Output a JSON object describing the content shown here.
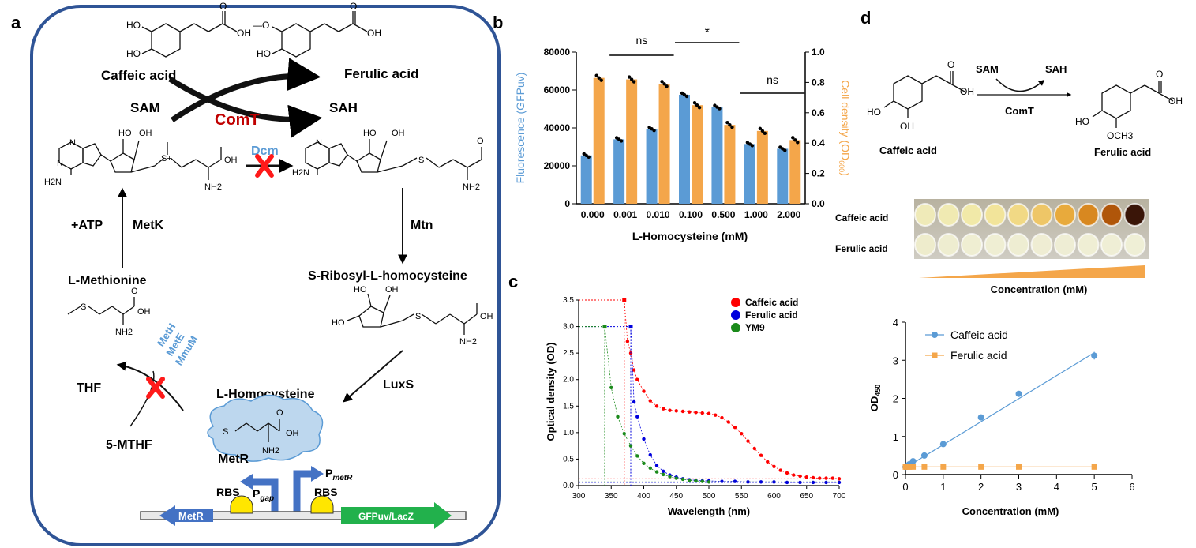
{
  "panels": {
    "a": "a",
    "b": "b",
    "c": "c",
    "d": "d"
  },
  "panel_a": {
    "caffeic_acid": "Caffeic acid",
    "ferulic_acid": "Ferulic acid",
    "sam": "SAM",
    "sah": "SAH",
    "comt": "ComT",
    "dcm": "Dcm",
    "atp": "+ATP",
    "metk": "MetK",
    "mtn": "Mtn",
    "l_methionine": "L-Methionine",
    "s_ribosyl": "S-Ribosyl-L-homocysteine",
    "meth": "MetH",
    "mete": "MetE",
    "mmum": "MmuM",
    "thf": "THF",
    "mthf": "5-MTHF",
    "luxs": "LuxS",
    "l_homocysteine": "L-Homocysteine",
    "metr": "MetR",
    "p_gap_p": "P",
    "p_gap_sub": "gap",
    "p_metr_p": "P",
    "p_metr_sub": "metR",
    "rbs": "RBS",
    "metr_gene": "MetR",
    "reporter": "GFPuv/LacZ",
    "atoms": {
      "ho": "HO",
      "oh": "OH",
      "o": "O",
      "n": "N",
      "s": "S",
      "nh2": "NH2",
      "h2n": "H2N",
      "ch3o": "—O",
      "s_plus": "S+"
    },
    "colors": {
      "frame": "#2f5496",
      "comt": "#c00000",
      "dcm": "#5b9bd5",
      "cross": "#ff1a1a",
      "blue_arrow": "#4472c4",
      "cloud": "#bdd7ee",
      "rbs": "#ffe600",
      "reporter": "#22b14c"
    }
  },
  "panel_b": {
    "significance": [
      "ns",
      "*",
      "ns"
    ],
    "y_left_label": "Fluorescence (GFPuv)",
    "y_right_label_main": "Cell density (OD",
    "y_right_label_sub": "600",
    "y_right_label_end": ")",
    "x_label": "L-Homocysteine (mM)",
    "colors": {
      "fluorescence": "#5b9bd5",
      "density": "#f4a64a"
    },
    "chart_data": {
      "type": "bar",
      "categories": [
        "0.000",
        "0.001",
        "0.010",
        "0.100",
        "0.500",
        "1.000",
        "2.000"
      ],
      "series": [
        {
          "values": [
            25500,
            34000,
            39500,
            57500,
            51000,
            31500,
            29000
          ],
          "axis": "left"
        },
        {
          "values": [
            0.83,
            0.82,
            0.79,
            0.65,
            0.52,
            0.48,
            0.42
          ],
          "axis": "right"
        }
      ],
      "ylim_left": [
        0,
        80000
      ],
      "yticks_left": [
        "0",
        "20000",
        "40000",
        "60000",
        "80000"
      ],
      "ylim_right": [
        0,
        1.0
      ],
      "yticks_right": [
        "0.0",
        "0.2",
        "0.4",
        "0.6",
        "0.8",
        "1.0"
      ]
    }
  },
  "panel_c": {
    "x_label": "Wavelength (nm)",
    "y_label": "Optical density (OD)",
    "colors": {
      "Caffeic acid": "#ff0000",
      "Ferulic acid": "#0000dd",
      "YM9": "#1a8a1a"
    },
    "chart_data": {
      "type": "scatter",
      "xlim": [
        300,
        700
      ],
      "ylim": [
        0,
        3.5
      ],
      "xticks": [
        "300",
        "350",
        "400",
        "450",
        "500",
        "550",
        "600",
        "650",
        "700"
      ],
      "yticks": [
        "0.0",
        "0.5",
        "1.0",
        "1.5",
        "2.0",
        "2.5",
        "3.0",
        "3.5"
      ],
      "series": [
        {
          "name": "Caffeic acid",
          "peak": [
            370,
            3.5
          ],
          "x": [
            375,
            380,
            385,
            390,
            400,
            410,
            420,
            430,
            440,
            450,
            460,
            470,
            480,
            490,
            500,
            510,
            520,
            530,
            540,
            550,
            560,
            570,
            580,
            590,
            600,
            610,
            620,
            630,
            640,
            650,
            660,
            670,
            680,
            690,
            700
          ],
          "y": [
            2.72,
            2.5,
            2.18,
            2.0,
            1.78,
            1.6,
            1.5,
            1.45,
            1.42,
            1.41,
            1.4,
            1.39,
            1.38,
            1.37,
            1.36,
            1.33,
            1.28,
            1.2,
            1.1,
            0.98,
            0.84,
            0.7,
            0.57,
            0.45,
            0.36,
            0.29,
            0.24,
            0.2,
            0.18,
            0.16,
            0.15,
            0.14,
            0.14,
            0.14,
            0.13
          ]
        },
        {
          "name": "Ferulic acid",
          "peak": [
            380,
            3.0
          ],
          "x": [
            385,
            390,
            400,
            410,
            420,
            430,
            440,
            450,
            460,
            470,
            480,
            490,
            500,
            520,
            540,
            560,
            580,
            600,
            620,
            640,
            660,
            680,
            700
          ],
          "y": [
            1.58,
            1.3,
            0.88,
            0.58,
            0.38,
            0.27,
            0.2,
            0.16,
            0.13,
            0.11,
            0.1,
            0.09,
            0.09,
            0.08,
            0.08,
            0.07,
            0.07,
            0.07,
            0.06,
            0.06,
            0.06,
            0.06,
            0.06
          ]
        },
        {
          "name": "YM9",
          "peak": [
            340,
            3.0
          ],
          "x": [
            350,
            360,
            370,
            380,
            390,
            400,
            410,
            420,
            430,
            440,
            450,
            460,
            470,
            480,
            490,
            500
          ],
          "y": [
            1.85,
            1.3,
            0.98,
            0.75,
            0.56,
            0.42,
            0.33,
            0.26,
            0.21,
            0.17,
            0.14,
            0.12,
            0.1,
            0.09,
            0.08,
            0.07
          ]
        }
      ]
    }
  },
  "panel_d": {
    "sam": "SAM",
    "sah": "SAH",
    "comt": "ComT",
    "caffeic_acid": "Caffeic acid",
    "ferulic_acid": "Ferulic acid",
    "atoms": {
      "oh": "OH",
      "ho": "HO",
      "o": "O",
      "och3": "OCH3"
    },
    "tube_rows": [
      "Caffeic acid",
      "Ferulic acid"
    ],
    "tube_colors_caffeic": [
      "#efeab8",
      "#f0eab2",
      "#f1e9a8",
      "#f2e49a",
      "#f1d985",
      "#eec667",
      "#e8aa3c",
      "#d88820",
      "#b0560a",
      "#3a1508"
    ],
    "tube_colors_ferulic": [
      "#eeeccc",
      "#eeedd0",
      "#efeed2",
      "#efeed3",
      "#eeedd2",
      "#efedd3",
      "#eeedd4",
      "#efeed4",
      "#efeed5",
      "#efefd6"
    ],
    "concentration_label": "Concentration (mM)",
    "x_label": "Concentration (mM)",
    "y_label": "OD450",
    "colors": {
      "Caffeic acid": "#5b9bd5",
      "Ferulic acid": "#f4a64a",
      "wedge": "#f4a64a"
    },
    "chart_data": {
      "type": "line",
      "xlim": [
        0,
        6
      ],
      "ylim": [
        0,
        4
      ],
      "xticks": [
        "0",
        "1",
        "2",
        "3",
        "4",
        "5",
        "6"
      ],
      "yticks": [
        "0",
        "1",
        "2",
        "3",
        "4"
      ],
      "legend": "top-left",
      "series": [
        {
          "name": "Caffeic acid",
          "x": [
            0,
            0.05,
            0.1,
            0.2,
            0.5,
            1,
            2,
            3,
            5
          ],
          "y": [
            0.2,
            0.23,
            0.27,
            0.35,
            0.5,
            0.8,
            1.5,
            2.12,
            3.12
          ]
        },
        {
          "name": "Ferulic acid",
          "x": [
            0,
            0.05,
            0.1,
            0.2,
            0.5,
            1,
            2,
            3,
            5
          ],
          "y": [
            0.2,
            0.2,
            0.2,
            0.2,
            0.2,
            0.2,
            0.2,
            0.2,
            0.2
          ]
        }
      ]
    }
  }
}
